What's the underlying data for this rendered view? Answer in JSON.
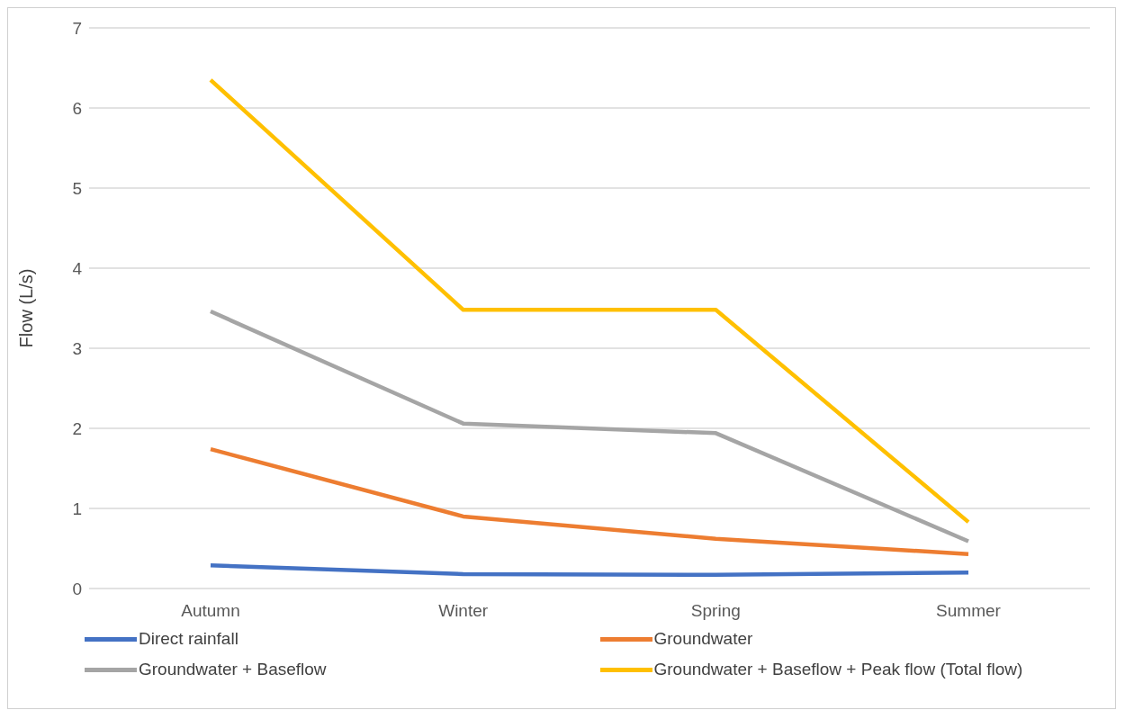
{
  "chart_data": {
    "type": "line",
    "ylabel": "Flow (L/s)",
    "categories": [
      "Autumn",
      "Winter",
      "Spring",
      "Summer"
    ],
    "series": [
      {
        "name": "Direct rainfall",
        "color": "#4472c4",
        "values": [
          0.29,
          0.18,
          0.17,
          0.2
        ]
      },
      {
        "name": "Groundwater",
        "color": "#ed7d31",
        "values": [
          1.74,
          0.9,
          0.62,
          0.43
        ]
      },
      {
        "name": "Groundwater + Baseflow",
        "color": "#a5a5a5",
        "values": [
          3.46,
          2.06,
          1.94,
          0.59
        ]
      },
      {
        "name": "Groundwater + Baseflow + Peak flow (Total flow)",
        "color": "#ffc000",
        "values": [
          6.35,
          3.48,
          3.48,
          0.83
        ]
      }
    ],
    "ylim": [
      0,
      7
    ],
    "yticks": [
      0,
      1,
      2,
      3,
      4,
      5,
      6,
      7
    ],
    "grid": "y",
    "legend": "bottom",
    "marker": "none",
    "line_style": "solid"
  }
}
